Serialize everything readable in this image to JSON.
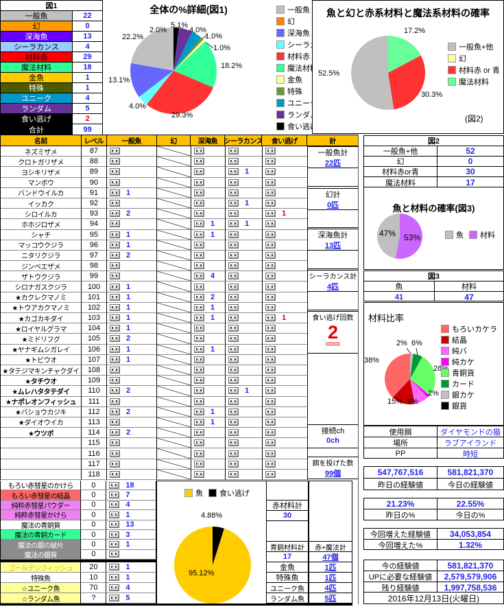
{
  "fig1_table": {
    "title": "図1",
    "rows": [
      {
        "label": "一般魚",
        "value": "22",
        "bg": "#C0C0C0",
        "fg": "#000000",
        "vc": "#2222EE"
      },
      {
        "label": "幻",
        "value": "0",
        "bg": "#FF9900",
        "fg": "#000000",
        "vc": "#2222EE"
      },
      {
        "label": "深海魚",
        "value": "13",
        "bg": "#6600FF",
        "fg": "#FFFFFF",
        "vc": "#2222EE"
      },
      {
        "label": "シーラカンス",
        "value": "4",
        "bg": "#99CCFF",
        "fg": "#000000",
        "vc": "#2222EE"
      },
      {
        "label": "材料赤",
        "value": "29",
        "bg": "#FF0000",
        "fg": "#000000",
        "vc": "#2222EE"
      },
      {
        "label": "魔法材料",
        "value": "18",
        "bg": "#33FF99",
        "fg": "#000000",
        "vc": "#2222EE"
      },
      {
        "label": "金魚",
        "value": "1",
        "bg": "#FFCC00",
        "fg": "#000000",
        "vc": "#2222EE"
      },
      {
        "label": "特殊",
        "value": "1",
        "bg": "#4C5B00",
        "fg": "#FFFFFF",
        "vc": "#2222EE"
      },
      {
        "label": "ユニーク",
        "value": "4",
        "bg": "#0099CC",
        "fg": "#FFFFFF",
        "vc": "#2222EE"
      },
      {
        "label": "ランダム",
        "value": "5",
        "bg": "#663399",
        "fg": "#FFFFFF",
        "vc": "#2222EE"
      },
      {
        "label": "食い逃げ",
        "value": "2",
        "bg": "#000000",
        "fg": "#FFFFFF",
        "vc": "#E00000"
      },
      {
        "label": "合計",
        "value": "99",
        "bg": "#000000",
        "fg": "#FFFFFF",
        "vc": "#2222EE"
      }
    ]
  },
  "chart_data": [
    {
      "type": "pie",
      "title": "全体の%詳細(図1)",
      "legend": [
        "一般魚",
        "幻",
        "深海魚",
        "シーラカンス",
        "材料赤",
        "魔法材料",
        "金魚",
        "特殊",
        "ユニーク",
        "ランダム",
        "食い逃げ"
      ],
      "values": [
        22.2,
        0,
        13.1,
        4.0,
        29.3,
        18.2,
        1.0,
        1.0,
        4.0,
        5.1,
        2.0
      ],
      "colors": [
        "#C0C0C0",
        "#FF8000",
        "#6666FF",
        "#66FFFF",
        "#FF3333",
        "#33FF99",
        "#FFFF99",
        "#669933",
        "#0099CC",
        "#663399",
        "#000000"
      ],
      "labels": [
        "22.2%",
        "13.1%",
        "4.0%",
        "29.3%",
        "18.2%",
        "1.0%",
        "1.0%",
        "4.0%",
        "5.1%",
        "2.0%"
      ],
      "direction": "counterclockwise",
      "legend_position": "right"
    },
    {
      "type": "pie",
      "title": "魚と幻と赤系材料と魔法系材料の確率",
      "legend": [
        "一般魚+他",
        "幻",
        "材料赤 or 青",
        "魔法材料"
      ],
      "values": [
        52.5,
        0,
        30.3,
        17.2
      ],
      "colors": [
        "#C0C0C0",
        "#FFFF99",
        "#FF3333",
        "#66FF99"
      ],
      "labels": [
        "17.2%",
        "52.5%",
        "30.3%"
      ],
      "note": "(図2)",
      "direction": "counterclockwise",
      "legend_position": "right"
    },
    {
      "type": "pie",
      "title": "魚と材料の確率(図3)",
      "legend": [
        "魚",
        "材料"
      ],
      "values": [
        47,
        53
      ],
      "colors": [
        "#C0C0C0",
        "#CC66FF"
      ],
      "labels": [
        "47%",
        "53%"
      ],
      "direction": "counterclockwise",
      "legend_position": "right"
    },
    {
      "type": "pie",
      "title": "材料比率",
      "legend": [
        "もろいカケラ",
        "結晶",
        "純バ",
        "純カケ",
        "青銅貨",
        "カード",
        "銀カケ",
        "銀貨"
      ],
      "values": [
        38,
        15,
        9,
        2,
        28,
        6,
        2,
        0
      ],
      "colors": [
        "#FF6666",
        "#CC0000",
        "#FF66FF",
        "#FF00FF",
        "#66FF66",
        "#009933",
        "#C0C0C0",
        "#000000"
      ],
      "labels": [
        "2%",
        "6%",
        "28%",
        "2%",
        "9%",
        "15%",
        "38%"
      ],
      "direction": "counterclockwise",
      "legend_position": "right"
    },
    {
      "type": "pie",
      "title": "",
      "legend": [
        "魚",
        "食い逃げ"
      ],
      "values": [
        95.12,
        4.88
      ],
      "colors": [
        "#FFCC00",
        "#000000"
      ],
      "labels": [
        "4.88%",
        "95.12%"
      ],
      "direction": "counterclockwise",
      "legend_position": "top"
    }
  ],
  "main_table": {
    "headers": [
      "名前",
      "レベル",
      "一般魚",
      "幻",
      "深海魚",
      "シーラカンス",
      "食い逃げ",
      "計"
    ],
    "rows": [
      {
        "name": "ネズミザメ",
        "level": "87",
        "general": "",
        "deep": "",
        "coelacanth": "",
        "escape": ""
      },
      {
        "name": "クロトガリザメ",
        "level": "88",
        "general": "",
        "deep": "",
        "coelacanth": "",
        "escape": ""
      },
      {
        "name": "ヨシキリザメ",
        "level": "89",
        "general": "",
        "deep": "",
        "coelacanth": "1",
        "escape": ""
      },
      {
        "name": "マンボウ",
        "level": "90",
        "general": "",
        "deep": "",
        "coelacanth": "",
        "escape": ""
      },
      {
        "name": "バンドウイルカ",
        "level": "91",
        "general": "1",
        "deep": "",
        "coelacanth": "",
        "escape": ""
      },
      {
        "name": "イッカク",
        "level": "92",
        "general": "",
        "deep": "",
        "coelacanth": "1",
        "escape": ""
      },
      {
        "name": "シロイルカ",
        "level": "93",
        "general": "2",
        "deep": "",
        "coelacanth": "",
        "escape": "1"
      },
      {
        "name": "ホホジロザメ",
        "level": "94",
        "general": "",
        "deep": "1",
        "coelacanth": "1",
        "escape": ""
      },
      {
        "name": "シャチ",
        "level": "95",
        "general": "1",
        "deep": "1",
        "coelacanth": "",
        "escape": ""
      },
      {
        "name": "マッコウクジラ",
        "level": "96",
        "general": "1",
        "deep": "",
        "coelacanth": "",
        "escape": ""
      },
      {
        "name": "ニタリクジラ",
        "level": "97",
        "general": "2",
        "deep": "",
        "coelacanth": "",
        "escape": ""
      },
      {
        "name": "ジンベエザメ",
        "level": "98",
        "general": "",
        "deep": "",
        "coelacanth": "",
        "escape": ""
      },
      {
        "name": "ザトウクジラ",
        "level": "99",
        "general": "",
        "deep": "4",
        "coelacanth": "",
        "escape": ""
      },
      {
        "name": "シロナガスクジラ",
        "level": "100",
        "general": "1",
        "deep": "",
        "coelacanth": "",
        "escape": ""
      },
      {
        "name": "★カクレクマノミ",
        "level": "101",
        "general": "1",
        "deep": "2",
        "coelacanth": "",
        "escape": ""
      },
      {
        "name": "★トウアカクマノミ",
        "level": "102",
        "general": "1",
        "deep": "1",
        "coelacanth": "",
        "escape": ""
      },
      {
        "name": "★カゴカキダイ",
        "level": "103",
        "general": "1",
        "deep": "1",
        "coelacanth": "",
        "escape": "1"
      },
      {
        "name": "★ロイヤルグラマ",
        "level": "104",
        "general": "1",
        "deep": "",
        "coelacanth": "",
        "escape": ""
      },
      {
        "name": "★ミドリフグ",
        "level": "105",
        "general": "2",
        "deep": "",
        "coelacanth": "",
        "escape": ""
      },
      {
        "name": "★ヤナギムシガレイ",
        "level": "106",
        "general": "1",
        "deep": "1",
        "coelacanth": "",
        "escape": ""
      },
      {
        "name": "★トビウオ",
        "level": "107",
        "general": "1",
        "deep": "",
        "coelacanth": "",
        "escape": ""
      },
      {
        "name": "★タテジマキンチャクダイ",
        "level": "108",
        "general": "",
        "deep": "",
        "coelacanth": "",
        "escape": ""
      },
      {
        "name": "★タチウオ",
        "level": "109",
        "general": "",
        "deep": "",
        "coelacanth": "",
        "escape": "",
        "bold": true
      },
      {
        "name": "★ムレハタタテダイ",
        "level": "110",
        "general": "2",
        "deep": "",
        "coelacanth": "1",
        "escape": "",
        "bold": true
      },
      {
        "name": "★ナポレオンフィッシュ",
        "level": "111",
        "general": "",
        "deep": "",
        "coelacanth": "",
        "escape": "",
        "bold": true
      },
      {
        "name": "★バショウカジキ",
        "level": "112",
        "general": "2",
        "deep": "1",
        "coelacanth": "",
        "escape": ""
      },
      {
        "name": "★ダイオウイカ",
        "level": "113",
        "general": "",
        "deep": "1",
        "coelacanth": "",
        "escape": ""
      },
      {
        "name": "★ウツボ",
        "level": "114",
        "general": "2",
        "deep": "",
        "coelacanth": "",
        "escape": "",
        "bold": true
      },
      {
        "name": "",
        "level": "115",
        "general": "",
        "deep": "",
        "coelacanth": "",
        "escape": ""
      },
      {
        "name": "",
        "level": "116",
        "general": "",
        "deep": "",
        "coelacanth": "",
        "escape": ""
      },
      {
        "name": "",
        "level": "117",
        "general": "",
        "deep": "",
        "coelacanth": "",
        "escape": ""
      },
      {
        "name": "",
        "level": "118",
        "general": "",
        "deep": "",
        "coelacanth": "",
        "escape": ""
      }
    ]
  },
  "kei": {
    "header": "計",
    "ippan": {
      "label": "一般魚計",
      "value": "22匹"
    },
    "maboroshi": {
      "label": "幻計",
      "value": "0匹"
    },
    "shinkai": {
      "label": "深海魚計",
      "value": "13匹"
    },
    "coelacanth": {
      "label": "シーラカンス計",
      "value": "4匹"
    },
    "escape": {
      "label": "食い逃げ回数",
      "value": "2"
    },
    "channel": {
      "label": "接続ch",
      "value": "0ch"
    },
    "bait": {
      "label": "餌を投げた数",
      "value": "99個"
    }
  },
  "bottom_rows": [
    {
      "name": "もろい赤彗星のかけら",
      "level": "0",
      "count": "18",
      "bg": "#FFFFFF",
      "fg": "#000000"
    },
    {
      "name": "もろい赤彗星の結晶",
      "level": "0",
      "count": "7",
      "bg": "#FF6666",
      "fg": "#000000"
    },
    {
      "name": "純粋赤彗星パウダー",
      "level": "0",
      "count": "4",
      "bg": "#EE82EE",
      "fg": "#000000"
    },
    {
      "name": "純粋赤彗星かけら",
      "level": "0",
      "count": "1",
      "bg": "#EE82EE",
      "fg": "#000000"
    },
    {
      "name": "魔法の青銅貨",
      "level": "0",
      "count": "13",
      "bg": "#FFFFFF",
      "fg": "#000000"
    },
    {
      "name": "魔法の青銅カード",
      "level": "0",
      "count": "3",
      "bg": "#33FF99",
      "fg": "#000000"
    },
    {
      "name": "魔法の銀の破片",
      "level": "0",
      "count": "1",
      "bg": "#8C8C8C",
      "fg": "#FFFFFF"
    },
    {
      "name": "魔法の銀貨",
      "level": "0",
      "count": "",
      "bg": "#8C8C8C",
      "fg": "#FFFFFF"
    },
    {
      "name": "ゴールデンフィッシュ",
      "level": "20",
      "count": "1",
      "bg": "#FFFF99",
      "fg": "#E0B800"
    },
    {
      "name": "特殊魚",
      "level": "10",
      "count": "1",
      "bg": "#FFFFFF",
      "fg": "#000000"
    },
    {
      "name": "☆ユニーク魚",
      "level": "70",
      "count": "4",
      "bg": "#FFFF99",
      "fg": "#000000"
    },
    {
      "name": "☆ランダム魚",
      "level": "?",
      "count": "5",
      "bg": "#FFFF99",
      "fg": "#000000"
    }
  ],
  "minitable": {
    "red_label": "赤材料計",
    "red_value": "30",
    "bronze_label": "青銅材料計",
    "bronze_value": "17",
    "total_label": "赤+魔法計",
    "total_value": "47個",
    "rows": [
      {
        "label": "金魚",
        "value": "1匹"
      },
      {
        "label": "特殊魚",
        "value": "1匹"
      },
      {
        "label": "ユニーク魚",
        "value": "4匹"
      },
      {
        "label": "ランダム魚",
        "value": "5匹"
      }
    ]
  },
  "right_panel": {
    "fig2_table": {
      "title": "図2",
      "rows": [
        {
          "label": "一般魚+他",
          "value": "52"
        },
        {
          "label": "幻",
          "value": "0"
        },
        {
          "label": "材料赤or青",
          "value": "30"
        },
        {
          "label": "魔法材料",
          "value": "17"
        }
      ]
    },
    "fig3_table": {
      "title": "図3",
      "col1": "魚",
      "col2": "材料",
      "v1": "41",
      "v2": "47"
    },
    "zairyo_title": "材料比率",
    "info": [
      {
        "label": "使用餌",
        "value": "ダイヤモンドの猫"
      },
      {
        "label": "場所",
        "value": "ラブアイランド"
      },
      {
        "label": "PP",
        "value": "時短"
      }
    ],
    "exp1": {
      "v1": "547,767,516",
      "v2": "581,821,370",
      "l1": "昨日の経験値",
      "l2": "今日の経験値"
    },
    "exp2": {
      "v1": "21.23%",
      "v2": "22.55%",
      "l1": "昨日の%",
      "l2": "今日の%"
    },
    "exp3": [
      {
        "label": "今回増えた経験値",
        "value": "34,053,854"
      },
      {
        "label": "今回増えた%",
        "value": "1.32%"
      }
    ],
    "exp4": [
      {
        "label": "今の経験値",
        "value": "581,821,370"
      },
      {
        "label": "UPに必要な経験値",
        "value": "2,579,579,906"
      },
      {
        "label": "残り経験値",
        "value": "1,997,758,536"
      }
    ],
    "date": "2016年12月13日(火曜日)"
  }
}
